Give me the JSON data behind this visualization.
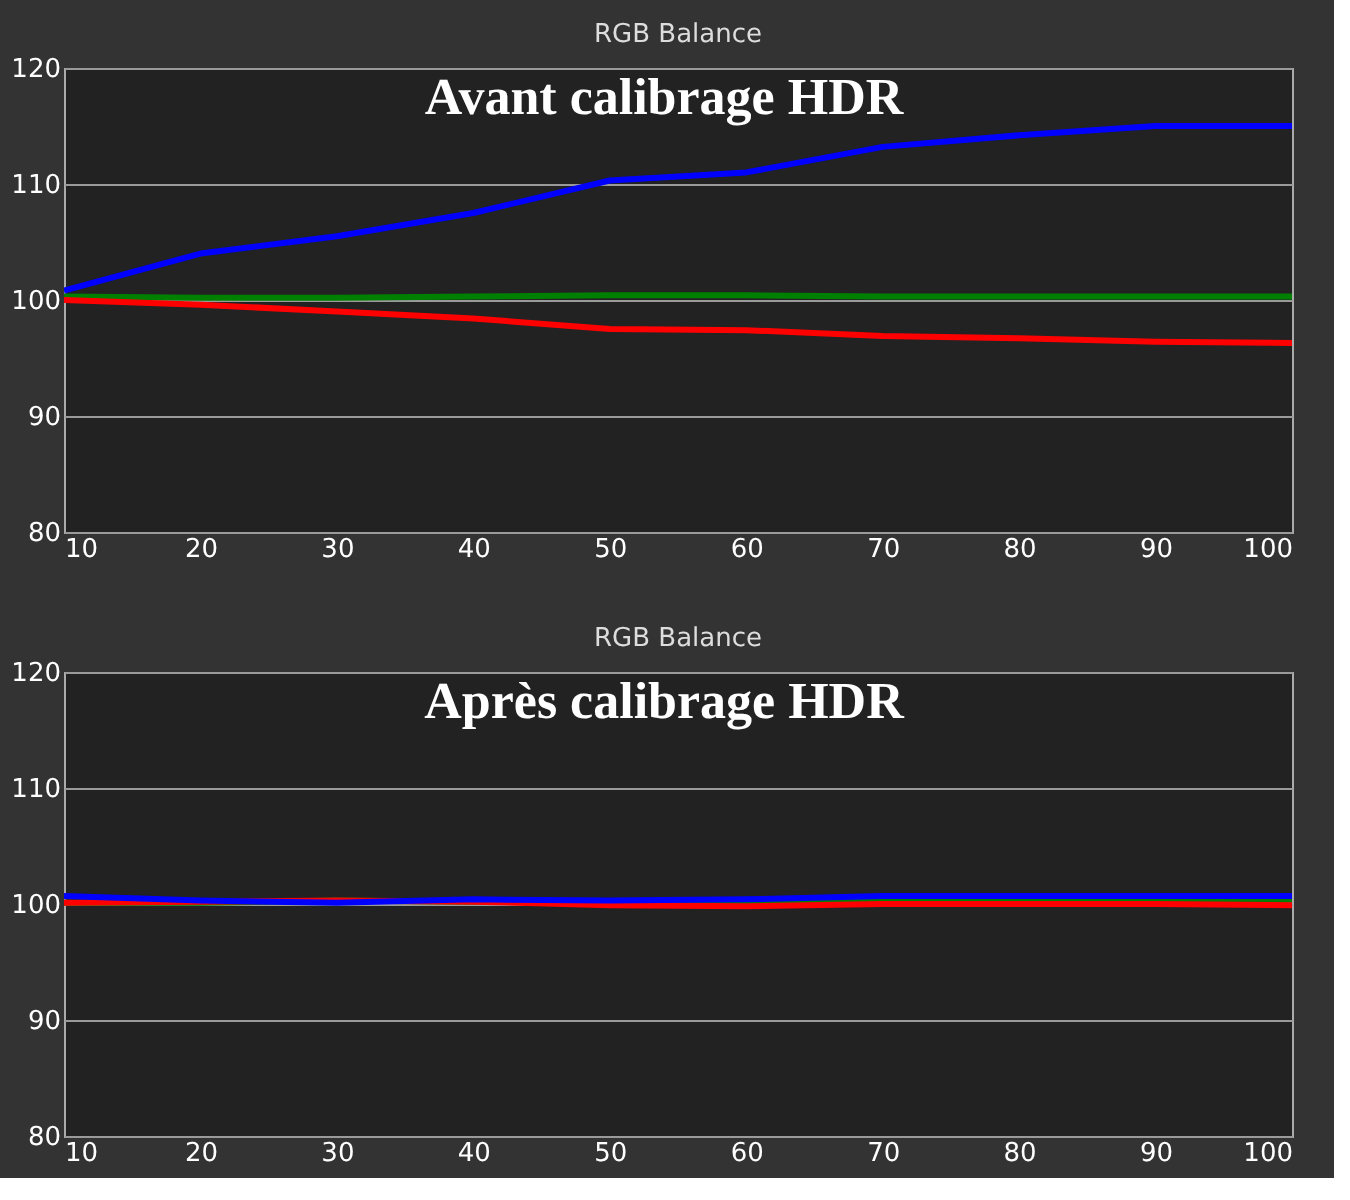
{
  "chart_data": [
    {
      "type": "line",
      "title": "RGB Balance",
      "annotations": [
        "Avant calibrage HDR"
      ],
      "x": [
        10,
        20,
        30,
        40,
        50,
        60,
        70,
        80,
        90,
        100
      ],
      "series": [
        {
          "color": "#008000",
          "values": [
            100.3,
            100.2,
            100.2,
            100.3,
            100.4,
            100.4,
            100.3,
            100.3,
            100.3,
            100.3
          ]
        },
        {
          "color": "#ff0000",
          "values": [
            100,
            99.6,
            99,
            98.4,
            97.5,
            97.4,
            96.9,
            96.7,
            96.4,
            96.3
          ]
        },
        {
          "color": "#0000ff",
          "values": [
            100.8,
            104,
            105.5,
            107.5,
            110.3,
            111,
            113.2,
            114.2,
            115,
            115
          ]
        }
      ],
      "xlim": [
        10,
        100
      ],
      "ylim": [
        80,
        120
      ],
      "xticks": [
        10,
        20,
        30,
        40,
        50,
        60,
        70,
        80,
        90,
        100
      ],
      "yticks": [
        80,
        90,
        100,
        110,
        120
      ],
      "grid": "y",
      "line_style": "solid",
      "marker": "none"
    },
    {
      "type": "line",
      "title": "RGB Balance",
      "annotations": [
        "Après calibrage HDR"
      ],
      "x": [
        10,
        20,
        30,
        40,
        50,
        60,
        70,
        80,
        90,
        100
      ],
      "series": [
        {
          "color": "#008000",
          "values": [
            100.1,
            100.1,
            100.3,
            100.2,
            100.2,
            100.2,
            100.3,
            100.3,
            100.3,
            100.2
          ]
        },
        {
          "color": "#ff0000",
          "values": [
            100.1,
            100.2,
            100.3,
            100.2,
            99.9,
            99.8,
            100,
            100,
            100,
            99.9
          ]
        },
        {
          "color": "#0000ff",
          "values": [
            100.7,
            100.3,
            100.1,
            100.4,
            100.3,
            100.4,
            100.7,
            100.7,
            100.7,
            100.7
          ]
        }
      ],
      "xlim": [
        10,
        100
      ],
      "ylim": [
        80,
        120
      ],
      "xticks": [
        10,
        20,
        30,
        40,
        50,
        60,
        70,
        80,
        90,
        100
      ],
      "yticks": [
        80,
        90,
        100,
        110,
        120
      ],
      "grid": "y",
      "line_style": "solid",
      "marker": "none"
    }
  ]
}
